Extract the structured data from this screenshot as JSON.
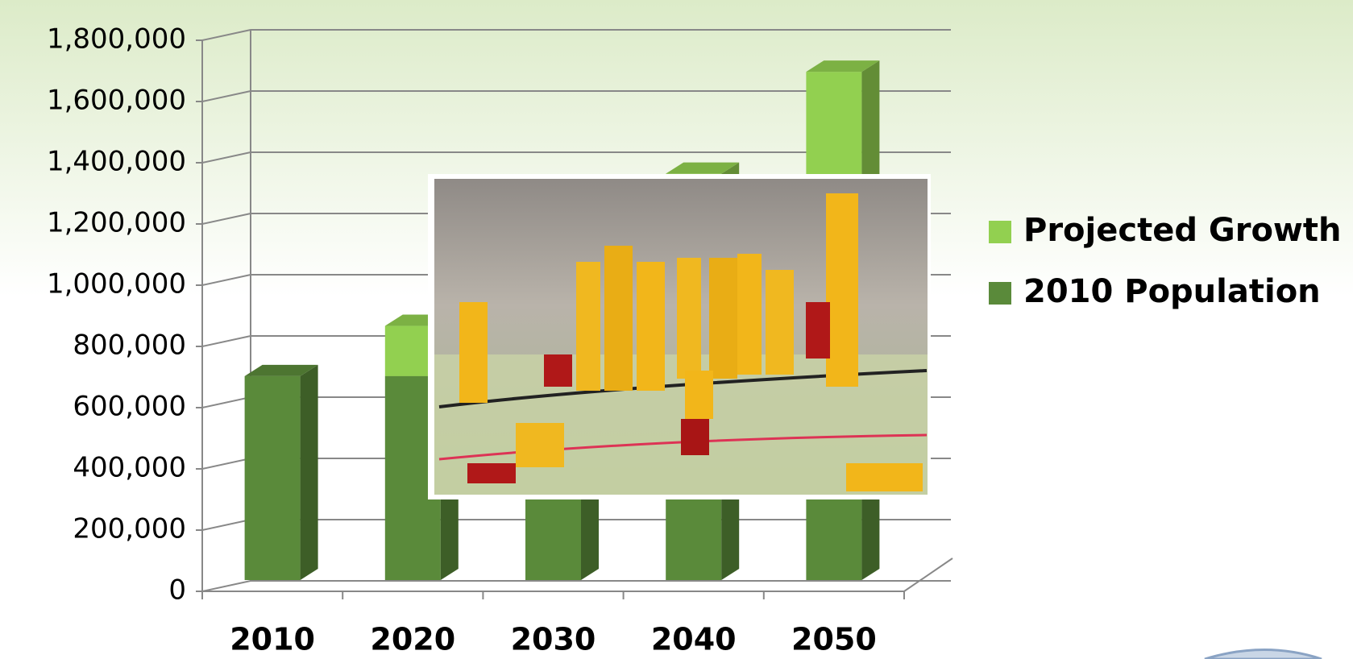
{
  "chart_data": {
    "type": "bar3d_stacked",
    "categories": [
      "2010",
      "2020",
      "2030",
      "2040",
      "2050"
    ],
    "series": [
      {
        "name": "2010 Population",
        "color": "#5a8a3a",
        "values": [
          670000,
          670000,
          670000,
          670000,
          670000
        ]
      },
      {
        "name": "Projected Growth",
        "color": "#92d050",
        "values": [
          0,
          165000,
          330000,
          665000,
          1000000
        ]
      }
    ],
    "ylim": [
      0,
      1800000
    ],
    "yticks": [
      {
        "value": 0,
        "label": "0"
      },
      {
        "value": 200000,
        "label": "200,000"
      },
      {
        "value": 400000,
        "label": "400,000"
      },
      {
        "value": 600000,
        "label": "600,000"
      },
      {
        "value": 800000,
        "label": "800,000"
      },
      {
        "value": 1000000,
        "label": "1,000,000"
      },
      {
        "value": 1200000,
        "label": "1,200,000"
      },
      {
        "value": 1400000,
        "label": "1,400,000"
      },
      {
        "value": 1600000,
        "label": "1,600,000"
      },
      {
        "value": 1800000,
        "label": "1,800,000"
      }
    ],
    "grid": true,
    "legend": "right"
  }
}
